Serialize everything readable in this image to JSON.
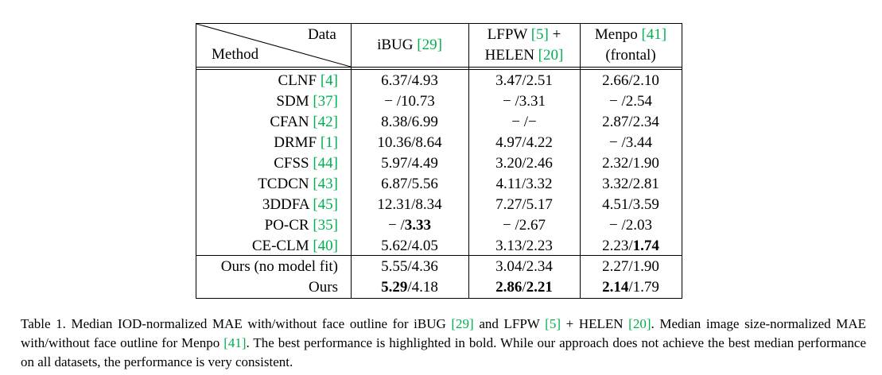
{
  "table": {
    "header": {
      "data_label": "Data",
      "method_label": "Method",
      "columns": [
        {
          "line1_text": "iBUG ",
          "line1_ref": "[29]",
          "line1_suffix": "",
          "line2_text": "",
          "line2_ref": "",
          "line2_suffix": ""
        },
        {
          "line1_text": "LFPW ",
          "line1_ref": "[5]",
          "line1_suffix": " +",
          "line2_text": "HELEN ",
          "line2_ref": "[20]",
          "line2_suffix": ""
        },
        {
          "line1_text": "Menpo ",
          "line1_ref": "[41]",
          "line1_suffix": "",
          "line2_text": "(frontal)",
          "line2_ref": "",
          "line2_suffix": ""
        }
      ]
    },
    "rows": [
      {
        "method": "CLNF ",
        "ref": "[4]",
        "c1a": "6.37",
        "c1b": "4.93",
        "c2a": "3.47",
        "c2b": "2.51",
        "c3a": "2.66",
        "c3b": "2.10"
      },
      {
        "method": "SDM ",
        "ref": "[37]",
        "c1a": "− ",
        "c1b": "10.73",
        "c2a": "− ",
        "c2b": "3.31",
        "c3a": "− ",
        "c3b": "2.54"
      },
      {
        "method": "CFAN ",
        "ref": "[42]",
        "c1a": "8.38",
        "c1b": "6.99",
        "c2a": "− ",
        "c2b": "−",
        "c3a": "2.87",
        "c3b": "2.34"
      },
      {
        "method": "DRMF ",
        "ref": "[1]",
        "c1a": "10.36",
        "c1b": "8.64",
        "c2a": "4.97",
        "c2b": "4.22",
        "c3a": "− ",
        "c3b": "3.44"
      },
      {
        "method": "CFSS ",
        "ref": "[44]",
        "c1a": "5.97",
        "c1b": "4.49",
        "c2a": "3.20",
        "c2b": "2.46",
        "c3a": "2.32",
        "c3b": "1.90"
      },
      {
        "method": "TCDCN ",
        "ref": "[43]",
        "c1a": "6.87",
        "c1b": "5.56",
        "c2a": "4.11",
        "c2b": "3.32",
        "c3a": "3.32",
        "c3b": "2.81"
      },
      {
        "method": "3DDFA ",
        "ref": "[45]",
        "c1a": "12.31",
        "c1b": "8.34",
        "c2a": "7.27",
        "c2b": "5.17",
        "c3a": "4.51",
        "c3b": "3.59"
      },
      {
        "method": "PO-CR ",
        "ref": "[35]",
        "c1a": "− ",
        "c1b": "3.33",
        "c2a": "− ",
        "c2b": "2.67",
        "c3a": "− ",
        "c3b": "2.03"
      },
      {
        "method": "CE-CLM ",
        "ref": "[40]",
        "c1a": "5.62",
        "c1b": "4.05",
        "c2a": "3.13",
        "c2b": "2.23",
        "c3a": "2.23",
        "c3b": "1.74"
      }
    ],
    "rows2": [
      {
        "method": "Ours (no model fit)",
        "ref": "",
        "c1a": "5.55",
        "c1b": "4.36",
        "c2a": "3.04",
        "c2b": "2.34",
        "c3a": "2.27",
        "c3b": "1.90"
      },
      {
        "method": "Ours",
        "ref": "",
        "c1a": "5.29",
        "c1b": "4.18",
        "c2a": "2.86",
        "c2b": "2.21",
        "c3a": "2.14",
        "c3b": "1.79"
      }
    ],
    "bold_cells": [
      "r7.c1b",
      "r8.c3b",
      "o1.c1a",
      "o1.c2a",
      "o1.c2b",
      "o1.c3a"
    ]
  },
  "caption": {
    "p1": "Table 1. Median IOD-normalized MAE with/without face outline for iBUG ",
    "r1": "[29]",
    "p2": " and LFPW ",
    "r2": "[5]",
    "p3": " + HELEN ",
    "r3": "[20]",
    "p4": ".  Median image size-normalized MAE with/without face outline for Menpo ",
    "r4": "[41]",
    "p5": ".  The best performance is highlighted in bold.  While our approach does not achieve the best median performance on all datasets, the performance is very consistent."
  }
}
